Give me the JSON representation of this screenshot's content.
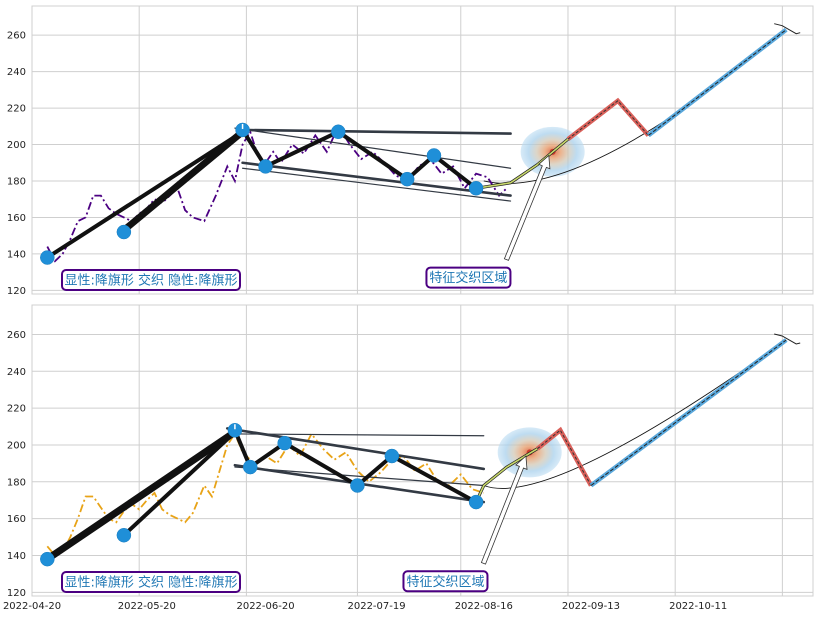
{
  "chart_data": [
    {
      "type": "line",
      "panel": "top",
      "title": "",
      "xlabel": "",
      "ylabel": "",
      "x_start": "2022-04-20",
      "x_end": "2022-11-10",
      "ylim": [
        118,
        276
      ],
      "yticks": [
        120,
        140,
        160,
        180,
        200,
        220,
        240,
        260
      ],
      "xticks": [],
      "grid": true,
      "price_color": "#4b0082",
      "price_style": "dashdot",
      "price_series": [
        [
          "2022-04-24",
          144
        ],
        [
          "2022-04-26",
          136
        ],
        [
          "2022-04-28",
          140
        ],
        [
          "2022-04-30",
          148
        ],
        [
          "2022-05-02",
          158
        ],
        [
          "2022-05-04",
          160
        ],
        [
          "2022-05-06",
          172
        ],
        [
          "2022-05-08",
          172
        ],
        [
          "2022-05-10",
          165
        ],
        [
          "2022-05-12",
          162
        ],
        [
          "2022-05-14",
          160
        ],
        [
          "2022-05-16",
          158
        ],
        [
          "2022-05-18",
          162
        ],
        [
          "2022-05-20",
          165
        ],
        [
          "2022-05-22",
          170
        ],
        [
          "2022-05-24",
          168
        ],
        [
          "2022-05-26",
          172
        ],
        [
          "2022-05-28",
          176
        ],
        [
          "2022-05-30",
          164
        ],
        [
          "2022-06-01",
          160
        ],
        [
          "2022-06-04",
          158
        ],
        [
          "2022-06-07",
          172
        ],
        [
          "2022-06-10",
          188
        ],
        [
          "2022-06-12",
          180
        ],
        [
          "2022-06-14",
          200
        ],
        [
          "2022-06-16",
          207
        ],
        [
          "2022-06-18",
          194
        ],
        [
          "2022-06-20",
          190
        ],
        [
          "2022-06-22",
          196
        ],
        [
          "2022-06-24",
          190
        ],
        [
          "2022-06-27",
          200
        ],
        [
          "2022-06-30",
          195
        ],
        [
          "2022-07-03",
          205
        ],
        [
          "2022-07-06",
          196
        ],
        [
          "2022-07-09",
          210
        ],
        [
          "2022-07-12",
          200
        ],
        [
          "2022-07-15",
          192
        ],
        [
          "2022-07-18",
          196
        ],
        [
          "2022-07-21",
          190
        ],
        [
          "2022-07-24",
          183
        ],
        [
          "2022-07-27",
          180
        ],
        [
          "2022-07-30",
          188
        ],
        [
          "2022-08-02",
          192
        ],
        [
          "2022-08-05",
          184
        ],
        [
          "2022-08-08",
          188
        ],
        [
          "2022-08-11",
          176
        ],
        [
          "2022-08-14",
          184
        ],
        [
          "2022-08-17",
          182
        ],
        [
          "2022-08-20",
          172
        ],
        [
          "2022-08-22",
          176
        ]
      ],
      "pivots": [
        [
          "2022-04-24",
          138
        ],
        [
          "2022-05-14",
          152
        ],
        [
          "2022-06-14",
          208
        ],
        [
          "2022-06-20",
          188
        ],
        [
          "2022-07-09",
          207
        ],
        [
          "2022-07-27",
          181
        ],
        [
          "2022-08-03",
          194
        ],
        [
          "2022-08-14",
          176
        ]
      ],
      "zigzag": [
        [
          "2022-06-14",
          208
        ],
        [
          "2022-06-20",
          188
        ],
        [
          "2022-07-09",
          207
        ],
        [
          "2022-07-27",
          181
        ],
        [
          "2022-08-03",
          194
        ],
        [
          "2022-08-14",
          176
        ]
      ],
      "flagpoles": [
        [
          [
            "2022-04-24",
            138
          ],
          [
            "2022-06-14",
            207
          ]
        ],
        [
          [
            "2022-05-14",
            152
          ],
          [
            "2022-06-14",
            206
          ]
        ],
        [
          [
            "2022-05-14",
            154
          ],
          [
            "2022-06-14",
            208
          ]
        ]
      ],
      "channel_lines": [
        {
          "from": [
            "2022-06-14",
            208
          ],
          "to": [
            "2022-08-23",
            206
          ],
          "color": "#333a44",
          "width": 2.6
        },
        {
          "from": [
            "2022-06-14",
            190
          ],
          "to": [
            "2022-08-23",
            172
          ],
          "color": "#333a44",
          "width": 2.6
        },
        {
          "from": [
            "2022-06-12",
            209
          ],
          "to": [
            "2022-08-23",
            187
          ],
          "color": "#333a44",
          "width": 1.2
        },
        {
          "from": [
            "2022-06-14",
            187
          ],
          "to": [
            "2022-08-23",
            169
          ],
          "color": "#333a44",
          "width": 1.2
        }
      ],
      "breakout": [
        [
          "2022-08-14",
          176
        ],
        [
          "2022-08-23",
          179
        ],
        [
          "2022-08-30",
          189
        ],
        [
          "2022-09-07",
          203
        ]
      ],
      "proj_red": [
        [
          "2022-09-07",
          203
        ],
        [
          "2022-09-20",
          224
        ],
        [
          "2022-09-28",
          205
        ]
      ],
      "proj_blue": [
        [
          "2022-09-28",
          205
        ],
        [
          "2022-11-03",
          263
        ]
      ],
      "arc": {
        "from": [
          "2022-08-16",
          180
        ],
        "through": [
          "2022-09-10",
          180
        ],
        "to": [
          "2022-11-03",
          263
        ]
      },
      "hot_zone": [
        "2022-09-03",
        196
      ],
      "annotation": {
        "text": "特征交织区域",
        "at": [
          "2022-08-12",
          127
        ],
        "arrow_to": [
          "2022-09-02",
          194
        ]
      },
      "legend": "显性:降旗形 交织 隐性:降旗形"
    },
    {
      "type": "line",
      "panel": "bottom",
      "title": "",
      "xlabel": "",
      "ylabel": "",
      "x_start": "2022-04-20",
      "x_end": "2022-11-10",
      "ylim": [
        118,
        276
      ],
      "yticks": [
        120,
        140,
        160,
        180,
        200,
        220,
        240,
        260
      ],
      "xticks": [
        "2022-04-20",
        "2022-05-20",
        "2022-06-20",
        "2022-07-19",
        "2022-08-16",
        "2022-09-13",
        "2022-10-11"
      ],
      "grid": true,
      "price_color": "#e8a317",
      "price_style": "dashdot",
      "price_series": [
        [
          "2022-04-24",
          145
        ],
        [
          "2022-04-26",
          140
        ],
        [
          "2022-04-28",
          142
        ],
        [
          "2022-04-30",
          150
        ],
        [
          "2022-05-02",
          160
        ],
        [
          "2022-05-04",
          172
        ],
        [
          "2022-05-06",
          172
        ],
        [
          "2022-05-08",
          166
        ],
        [
          "2022-05-10",
          160
        ],
        [
          "2022-05-12",
          158
        ],
        [
          "2022-05-14",
          164
        ],
        [
          "2022-05-16",
          168
        ],
        [
          "2022-05-18",
          165
        ],
        [
          "2022-05-20",
          170
        ],
        [
          "2022-05-22",
          174
        ],
        [
          "2022-05-24",
          165
        ],
        [
          "2022-05-26",
          162
        ],
        [
          "2022-05-28",
          160
        ],
        [
          "2022-05-30",
          158
        ],
        [
          "2022-06-01",
          163
        ],
        [
          "2022-06-04",
          178
        ],
        [
          "2022-06-06",
          172
        ],
        [
          "2022-06-08",
          186
        ],
        [
          "2022-06-10",
          200
        ],
        [
          "2022-06-12",
          206
        ],
        [
          "2022-06-14",
          196
        ],
        [
          "2022-06-17",
          190
        ],
        [
          "2022-06-20",
          194
        ],
        [
          "2022-06-23",
          190
        ],
        [
          "2022-06-26",
          200
        ],
        [
          "2022-06-29",
          194
        ],
        [
          "2022-07-02",
          206
        ],
        [
          "2022-07-05",
          198
        ],
        [
          "2022-07-08",
          192
        ],
        [
          "2022-07-11",
          196
        ],
        [
          "2022-07-14",
          186
        ],
        [
          "2022-07-17",
          180
        ],
        [
          "2022-07-20",
          185
        ],
        [
          "2022-07-23",
          192
        ],
        [
          "2022-07-26",
          194
        ],
        [
          "2022-07-29",
          186
        ],
        [
          "2022-08-01",
          190
        ],
        [
          "2022-08-04",
          180
        ],
        [
          "2022-08-07",
          178
        ],
        [
          "2022-08-10",
          184
        ],
        [
          "2022-08-13",
          176
        ],
        [
          "2022-08-16",
          174
        ]
      ],
      "pivots": [
        [
          "2022-04-24",
          138
        ],
        [
          "2022-05-14",
          151
        ],
        [
          "2022-06-12",
          208
        ],
        [
          "2022-06-16",
          188
        ],
        [
          "2022-06-25",
          201
        ],
        [
          "2022-07-14",
          178
        ],
        [
          "2022-07-23",
          194
        ],
        [
          "2022-08-14",
          169
        ]
      ],
      "zigzag": [
        [
          "2022-06-12",
          208
        ],
        [
          "2022-06-16",
          188
        ],
        [
          "2022-06-25",
          201
        ],
        [
          "2022-07-14",
          178
        ],
        [
          "2022-07-23",
          194
        ],
        [
          "2022-08-14",
          169
        ]
      ],
      "flagpoles": [
        [
          [
            "2022-04-24",
            137
          ],
          [
            "2022-06-12",
            206
          ]
        ],
        [
          [
            "2022-04-24",
            139
          ],
          [
            "2022-06-12",
            208
          ]
        ],
        [
          [
            "2022-05-14",
            151
          ],
          [
            "2022-06-12",
            207
          ]
        ]
      ],
      "channel_lines": [
        {
          "from": [
            "2022-06-10",
            209
          ],
          "to": [
            "2022-08-16",
            187
          ],
          "color": "#333a44",
          "width": 2.6
        },
        {
          "from": [
            "2022-06-12",
            206
          ],
          "to": [
            "2022-08-16",
            205
          ],
          "color": "#333a44",
          "width": 1.2
        },
        {
          "from": [
            "2022-06-12",
            189
          ],
          "to": [
            "2022-08-16",
            169
          ],
          "color": "#333a44",
          "width": 2.6
        },
        {
          "from": [
            "2022-06-12",
            188
          ],
          "to": [
            "2022-08-16",
            178
          ],
          "color": "#333a44",
          "width": 1.2
        }
      ],
      "breakout": [
        [
          "2022-08-14",
          169
        ],
        [
          "2022-08-16",
          178
        ],
        [
          "2022-08-22",
          188
        ],
        [
          "2022-08-30",
          198
        ]
      ],
      "proj_red": [
        [
          "2022-08-30",
          198
        ],
        [
          "2022-09-05",
          208
        ],
        [
          "2022-09-13",
          178
        ]
      ],
      "proj_blue": [
        [
          "2022-09-13",
          178
        ],
        [
          "2022-11-03",
          257
        ]
      ],
      "arc": {
        "from": [
          "2022-08-16",
          178
        ],
        "through": [
          "2022-09-02",
          177
        ],
        "to": [
          "2022-11-03",
          257
        ]
      },
      "hot_zone": [
        "2022-08-28",
        196
      ],
      "annotation": {
        "text": "特征交织区域",
        "at": [
          "2022-08-06",
          126
        ],
        "arrow_to": [
          "2022-08-27",
          194
        ]
      },
      "legend": "显性:降旗形 交织 隐性:降旗形"
    }
  ]
}
